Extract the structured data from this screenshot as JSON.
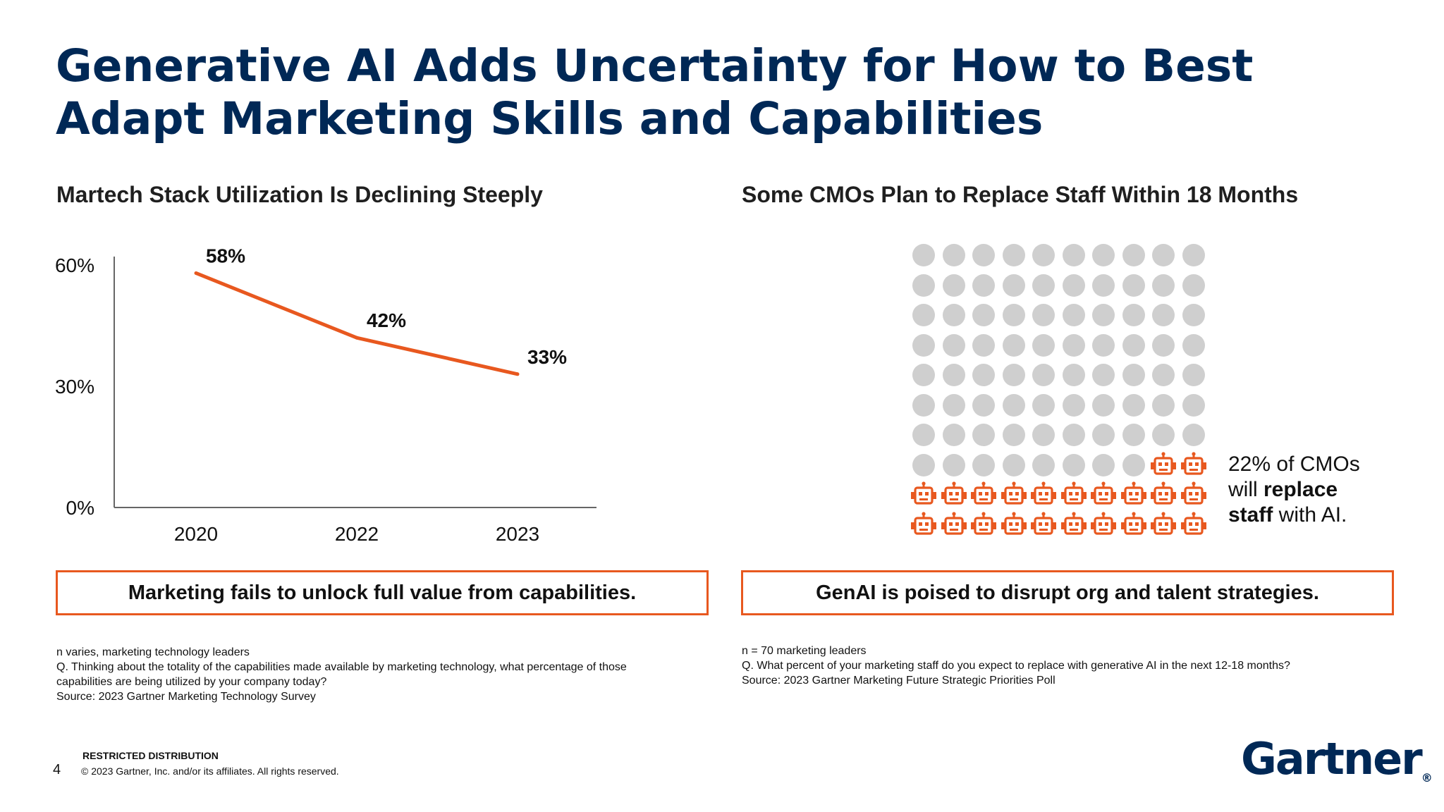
{
  "title": {
    "line1": "Generative AI Adds Uncertainty for How to Best",
    "line2": "Adapt Marketing Skills and Capabilities"
  },
  "left": {
    "subtitle": "Martech Stack Utilization Is Declining Steeply",
    "box_text": "Marketing fails to unlock full value from capabilities.",
    "notes": [
      "n varies, marketing technology leaders",
      "Q. Thinking about the totality of the capabilities made available by marketing technology, what percentage of those",
      "capabilities are being utilized by your company today?",
      "Source: 2023 Gartner Marketing Technology Survey"
    ]
  },
  "right": {
    "subtitle": "Some CMOs Plan to Replace Staff Within 18 Months",
    "box_text": "GenAI is poised to disrupt org and talent strategies.",
    "callout": {
      "prefix": "22% of CMOs",
      "mid": "will ",
      "bold1": "replace",
      "bold2": "staff",
      "suffix": " with AI."
    },
    "notes": [
      "n = 70 marketing leaders",
      "Q. What percent of your marketing staff do you expect to replace with generative AI in the next 12-18 months?",
      "Source: 2023 Gartner Marketing Future Strategic Priorities Poll"
    ],
    "waffle": {
      "total": 100,
      "highlighted": 22,
      "columns": 10
    }
  },
  "chart_data": {
    "type": "line",
    "title": "Martech Stack Utilization Is Declining Steeply",
    "categories": [
      "2020",
      "2022",
      "2023"
    ],
    "values": [
      58,
      42,
      33
    ],
    "data_labels": [
      "58%",
      "42%",
      "33%"
    ],
    "y_ticks": [
      "0%",
      "30%",
      "60%"
    ],
    "y_tick_values": [
      0,
      30,
      60
    ],
    "ylim": [
      0,
      60
    ],
    "xlabel": "",
    "ylabel": "",
    "grid": false,
    "series_color": "#e8581f"
  },
  "footer": {
    "restricted": "RESTRICTED DISTRIBUTION",
    "copyright": "© 2023 Gartner, Inc. and/or its affiliates. All rights reserved.",
    "page": "4",
    "logo": "Gartner",
    "logo_mark": "®"
  },
  "colors": {
    "title": "#002856",
    "accent": "#e8581f",
    "dot": "#cfcfcf"
  }
}
